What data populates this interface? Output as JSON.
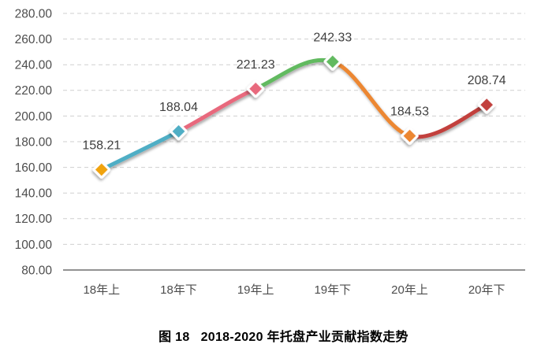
{
  "colors": {
    "background": "#ffffff",
    "gridline": "#cfcfcf",
    "axis_line": "#6e6e6e",
    "ytick_label": "#4d4d4d",
    "xtick_label": "#4d4d4d",
    "data_label": "#3f3f3f",
    "marker_border": "#ffffff",
    "caption_text": "#000000"
  },
  "chart_data": {
    "type": "line",
    "smooth": true,
    "title": "2018-2020年托盘产业贡献指数走势",
    "categories": [
      "18年上",
      "18年下",
      "19年上",
      "19年下",
      "20年上",
      "20年下"
    ],
    "values": [
      158.21,
      188.04,
      221.23,
      242.33,
      184.53,
      208.74
    ],
    "data_labels": [
      "158.21",
      "188.04",
      "221.23",
      "242.33",
      "184.53",
      "208.74"
    ],
    "ylim": [
      80,
      280
    ],
    "ytick_step": 20,
    "yticks": [
      "280.00",
      "260.00",
      "240.00",
      "220.00",
      "200.00",
      "180.00",
      "160.00",
      "140.00",
      "120.00",
      "100.00",
      "80.00"
    ],
    "xlabel": "",
    "ylabel": "",
    "grid": "horizontal-dashed",
    "legend": "none",
    "point_colors": [
      "#F0A30A",
      "#4FAEC5",
      "#E8697D",
      "#62BA60",
      "#EC8733",
      "#C2413C"
    ],
    "segment_colors": [
      "#4FAEC5",
      "#E8697D",
      "#62BA60",
      "#EC8733",
      "#C2413C"
    ]
  },
  "caption": {
    "prefix": "图 18",
    "title": "2018-2020 年托盘产业贡献指数走势"
  }
}
